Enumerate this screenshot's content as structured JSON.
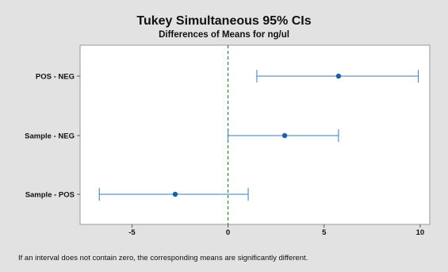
{
  "chart_data": {
    "type": "interval",
    "title": "Tukey Simultaneous 95% CIs",
    "subtitle": "Differences of Means for ng/ul",
    "categories": [
      "POS - NEG",
      "Sample - NEG",
      "Sample - POS"
    ],
    "series": [
      {
        "estimates": [
          5.75,
          2.95,
          -2.75
        ],
        "lower": [
          1.5,
          0.0,
          -6.7
        ],
        "upper": [
          9.9,
          5.75,
          1.05
        ]
      }
    ],
    "xticks": [
      -5,
      0,
      5,
      10
    ],
    "xtick_labels": [
      "-5",
      "0",
      "5",
      "10"
    ],
    "xlim": [
      -7.7,
      10.5
    ],
    "reference_line": 0,
    "colors": {
      "interval": "#3c7bb4",
      "marker": "#1d5fa3",
      "reference": "#2f8a3a"
    },
    "footnote": "If an interval does not contain zero, the corresponding means are significantly different."
  }
}
